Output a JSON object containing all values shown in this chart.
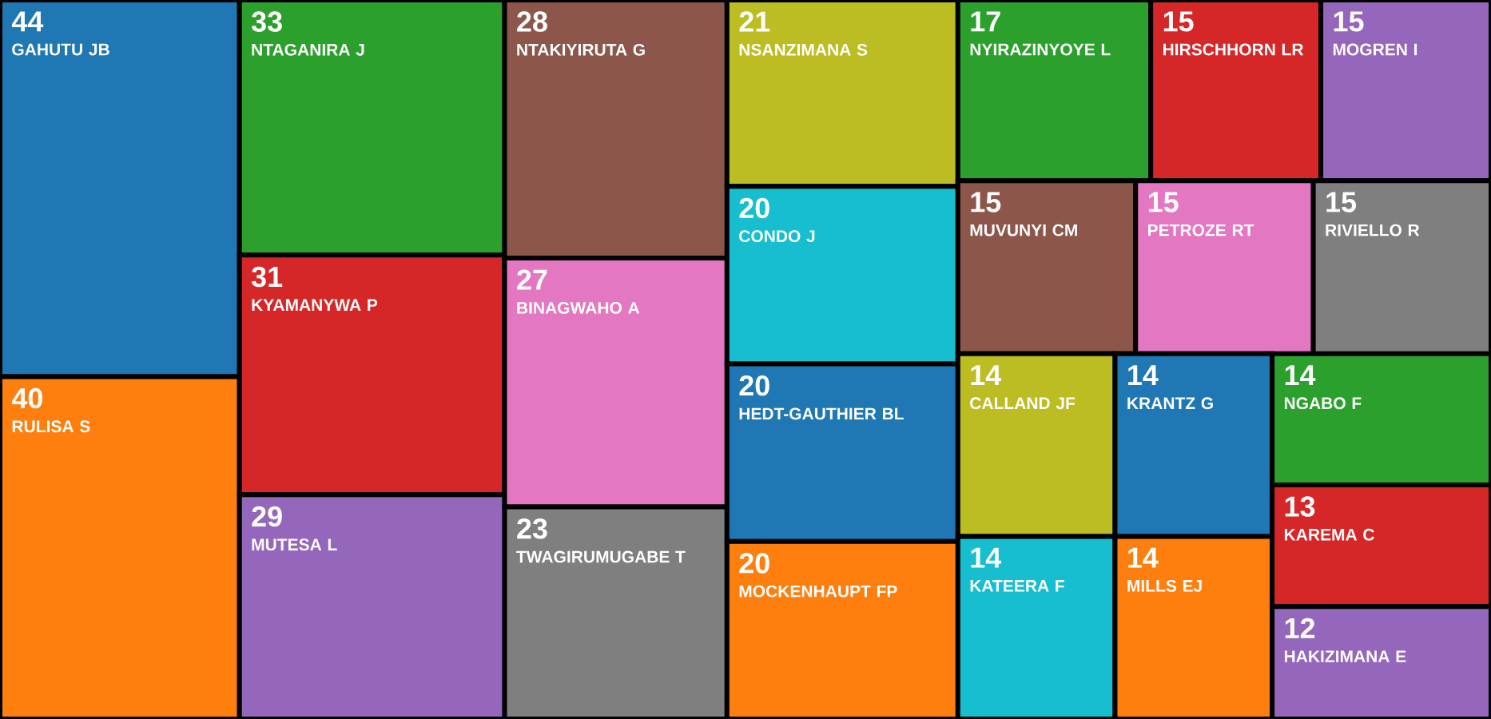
{
  "chart_data": {
    "type": "other",
    "data_labels": true,
    "categories": [
      "GAHUTU JB",
      "RULISA S",
      "NTAGANIRA J",
      "KYAMANYWA P",
      "MUTESA L",
      "NTAKIYIRUTA G",
      "BINAGWAHO A",
      "TWAGIRUMUGABE T",
      "NSANZIMANA S",
      "CONDO J",
      "HEDT-GAUTHIER BL",
      "MOCKENHAUPT FP",
      "NYIRAZINYOYE L",
      "HIRSCHHORN LR",
      "MOGREN I",
      "MUVUNYI CM",
      "PETROZE RT",
      "RIVIELLO R",
      "CALLAND JF",
      "KATEERA F",
      "KRANTZ G",
      "MILLS EJ",
      "NGABO F",
      "KAREMA C",
      "HAKIZIMANA E"
    ],
    "values": [
      44,
      40,
      33,
      31,
      29,
      28,
      27,
      23,
      21,
      20,
      20,
      20,
      17,
      15,
      15,
      15,
      15,
      15,
      14,
      14,
      14,
      14,
      14,
      13,
      12
    ],
    "colors": [
      "#1f77b4",
      "#ff7f0e",
      "#2ca02c",
      "#d62728",
      "#9467bd",
      "#8c564b",
      "#e377c2",
      "#7f7f7f",
      "#bcbd22",
      "#17becf",
      "#1f77b4",
      "#ff7f0e",
      "#2ca02c",
      "#d62728",
      "#9467bd",
      "#8c564b",
      "#e377c2",
      "#7f7f7f",
      "#bcbd22",
      "#17becf",
      "#1f77b4",
      "#ff7f0e",
      "#2ca02c",
      "#d62728",
      "#9467bd"
    ]
  }
}
